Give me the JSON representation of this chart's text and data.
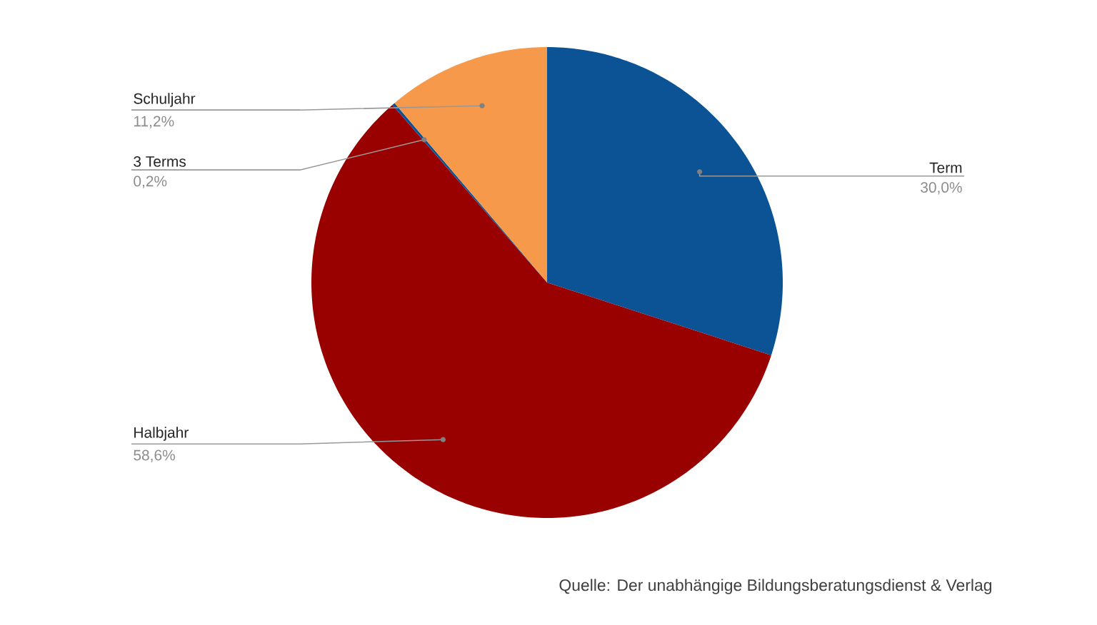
{
  "chart_data": {
    "type": "pie",
    "categories": [
      "Term",
      "Halbjahr",
      "3 Terms",
      "Schuljahr"
    ],
    "values": [
      30.0,
      58.6,
      0.2,
      11.2
    ],
    "colors": [
      "#0b5394",
      "#990000",
      "#0b5394",
      "#f6994a"
    ],
    "value_labels": [
      "30,0%",
      "58,6%",
      "0,2%",
      "11,2%"
    ],
    "annotations": [
      "Quelle: Der unabhängige Bildungsberatungsdienst & Verlag"
    ]
  }
}
